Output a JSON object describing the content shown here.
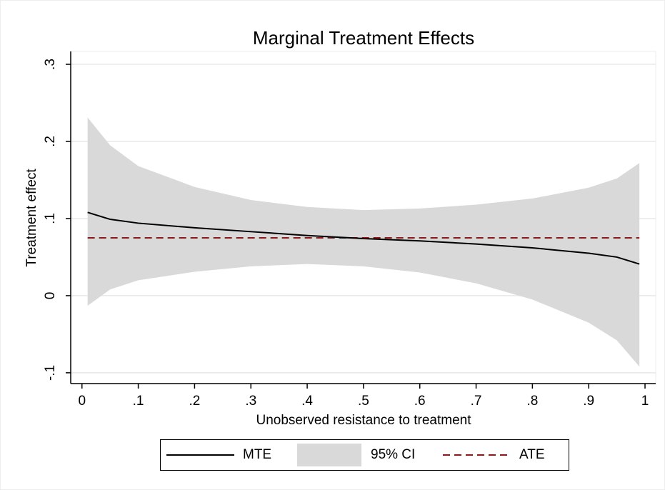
{
  "chart_data": {
    "type": "line",
    "title": "Marginal Treatment Effects",
    "xlabel": "Unobserved resistance to treatment",
    "ylabel": "Treatment effect",
    "x": [
      0.01,
      0.05,
      0.1,
      0.2,
      0.3,
      0.4,
      0.5,
      0.6,
      0.7,
      0.8,
      0.9,
      0.95,
      0.99
    ],
    "series": [
      {
        "name": "MTE",
        "color": "#000000",
        "style": "solid",
        "values": [
          0.108,
          0.099,
          0.094,
          0.088,
          0.083,
          0.078,
          0.074,
          0.071,
          0.067,
          0.062,
          0.055,
          0.05,
          0.041
        ]
      },
      {
        "name": "95% CI",
        "color": "#d9d9d9",
        "style": "band",
        "lower": [
          -0.013,
          0.008,
          0.02,
          0.031,
          0.038,
          0.041,
          0.038,
          0.03,
          0.016,
          -0.005,
          -0.035,
          -0.058,
          -0.092
        ],
        "upper": [
          0.231,
          0.195,
          0.168,
          0.141,
          0.124,
          0.115,
          0.111,
          0.113,
          0.118,
          0.126,
          0.14,
          0.152,
          0.172
        ]
      },
      {
        "name": "ATE",
        "color": "#8b1a1a",
        "style": "dashed",
        "values": [
          0.075,
          0.075,
          0.075,
          0.075,
          0.075,
          0.075,
          0.075,
          0.075,
          0.075,
          0.075,
          0.075,
          0.075,
          0.075
        ]
      }
    ],
    "xlim": [
      -0.02,
      1.019
    ],
    "ylim": [
      -0.114,
      0.3167
    ],
    "xticks": [
      0,
      {
        "value": 0.1,
        "label": ".1"
      },
      {
        "value": 0.2,
        "label": ".2"
      },
      {
        "value": 0.3,
        "label": ".3"
      },
      {
        "value": 0.4,
        "label": ".4"
      },
      {
        "value": 0.5,
        "label": ".5"
      },
      {
        "value": 0.6,
        "label": ".6"
      },
      {
        "value": 0.7,
        "label": ".7"
      },
      {
        "value": 0.8,
        "label": ".8"
      },
      {
        "value": 0.9,
        "label": ".9"
      },
      1
    ],
    "yticks": [
      {
        "value": -0.1,
        "label": "-.1"
      },
      0,
      {
        "value": 0.1,
        "label": ".1"
      },
      {
        "value": 0.2,
        "label": ".2"
      },
      {
        "value": 0.3,
        "label": ".3"
      }
    ],
    "grid": true
  }
}
